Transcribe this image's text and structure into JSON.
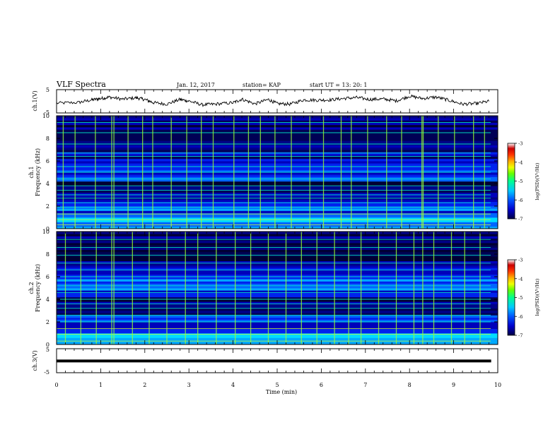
{
  "header": {
    "title": "VLF Spectra",
    "date": "Jan. 12, 2017",
    "station": "station= KAP",
    "start": "start  UT =  13: 20: 1"
  },
  "colors": {
    "colormap": [
      "#000000",
      "#000066",
      "#0000cc",
      "#0033ff",
      "#00a0ff",
      "#00e0ff",
      "#00ff99",
      "#33ff00",
      "#ccff00",
      "#ffe000",
      "#ff9900",
      "#ff3300",
      "#cc0000",
      "#ffffff"
    ],
    "axis": "#000000"
  },
  "chart_data": [
    {
      "type": "line",
      "panel": "ch1-waveform",
      "ylabel": "ch.1(V)",
      "ylim": [
        -5,
        5
      ],
      "yticks": [
        "5",
        "-5"
      ],
      "x": [
        0,
        0.5,
        0.8,
        1.0,
        1.2,
        1.5,
        1.8,
        2.0,
        2.2,
        2.5,
        2.8,
        3.0,
        3.3,
        3.6,
        4.0,
        4.2,
        4.5,
        4.8,
        5.0,
        5.3,
        5.6,
        5.9,
        6.2,
        6.5,
        6.8,
        7.1,
        7.4,
        7.7,
        8.0,
        8.3,
        8.6,
        8.9,
        9.2,
        9.5,
        9.8
      ],
      "y": [
        -0.8,
        -0.5,
        0.6,
        1.2,
        1.8,
        0.9,
        1.5,
        0.8,
        -0.6,
        -1.2,
        0.8,
        0.1,
        -1.5,
        -1.2,
        -0.6,
        0.9,
        -1.1,
        0.8,
        -1.0,
        -1.2,
        0.6,
        0.5,
        0.6,
        1.2,
        1.6,
        0.8,
        1.0,
        0.2,
        2.2,
        1.2,
        1.8,
        0.4,
        -1.2,
        -1.0,
        0.0
      ]
    },
    {
      "type": "heatmap",
      "panel": "ch1-spectrogram",
      "channel": "ch.1",
      "ylabel": "Frequency (kHz)",
      "ylim": [
        0,
        10
      ],
      "yticks": [
        "0",
        "2",
        "4",
        "6",
        "8",
        "10"
      ],
      "colorbar": {
        "label": "log(PSD)(V²/Hz)",
        "range": [
          -7,
          -3
        ],
        "ticks": [
          "-3",
          "-4",
          "-5",
          "-6",
          "-7"
        ]
      },
      "bursts_min": [
        0.15,
        0.42,
        0.88,
        1.25,
        1.3,
        1.62,
        1.95,
        2.18,
        2.6,
        2.95,
        3.28,
        3.55,
        4.02,
        4.35,
        4.62,
        4.95,
        5.32,
        5.74,
        6.05,
        6.45,
        6.68,
        7.05,
        7.48,
        7.82,
        8.28,
        8.31,
        8.65,
        9.02,
        9.45,
        9.7
      ],
      "lines_khz": [
        0.35,
        0.8,
        1.3,
        1.9,
        2.3,
        2.7,
        3.0,
        3.4,
        3.8,
        4.4,
        5.0,
        5.5,
        6.4,
        6.7,
        7.5,
        8.5,
        9.4
      ]
    },
    {
      "type": "heatmap",
      "panel": "ch2-spectrogram",
      "channel": "ch.2",
      "ylabel": "Frequency (kHz)",
      "ylim": [
        0,
        10
      ],
      "yticks": [
        "0",
        "2",
        "4",
        "6",
        "8",
        "10"
      ],
      "colorbar": {
        "label": "log(PSD)(V²/Hz)",
        "range": [
          -7,
          -3
        ],
        "ticks": [
          "-3",
          "-4",
          "-5",
          "-6",
          "-7"
        ]
      },
      "bursts_min": [
        0.2,
        0.55,
        0.9,
        1.25,
        1.3,
        1.72,
        2.1,
        2.5,
        2.92,
        3.2,
        3.62,
        4.05,
        4.4,
        4.8,
        5.2,
        5.55,
        5.9,
        6.3,
        6.62,
        6.9,
        7.3,
        7.7,
        8.1,
        8.3,
        8.55,
        8.95,
        9.25,
        9.6
      ],
      "lines_khz": [
        0.3,
        0.9,
        1.4,
        2.0,
        2.6,
        3.2,
        3.6,
        4.0,
        4.6,
        5.2,
        6.0,
        6.6,
        7.2,
        7.9,
        8.6,
        9.3
      ]
    },
    {
      "type": "line",
      "panel": "ch3-waveform",
      "ylabel": "ch.3(V)",
      "ylim": [
        -5,
        5
      ],
      "yticks": [
        "5",
        "-5"
      ],
      "x": [
        0,
        9.85
      ],
      "y": [
        -0.1,
        -0.1
      ]
    }
  ],
  "xaxis": {
    "label": "Time  (min)",
    "range": [
      0,
      10
    ],
    "ticks": [
      "0",
      "1",
      "2",
      "3",
      "4",
      "5",
      "6",
      "7",
      "8",
      "9",
      "10"
    ]
  }
}
